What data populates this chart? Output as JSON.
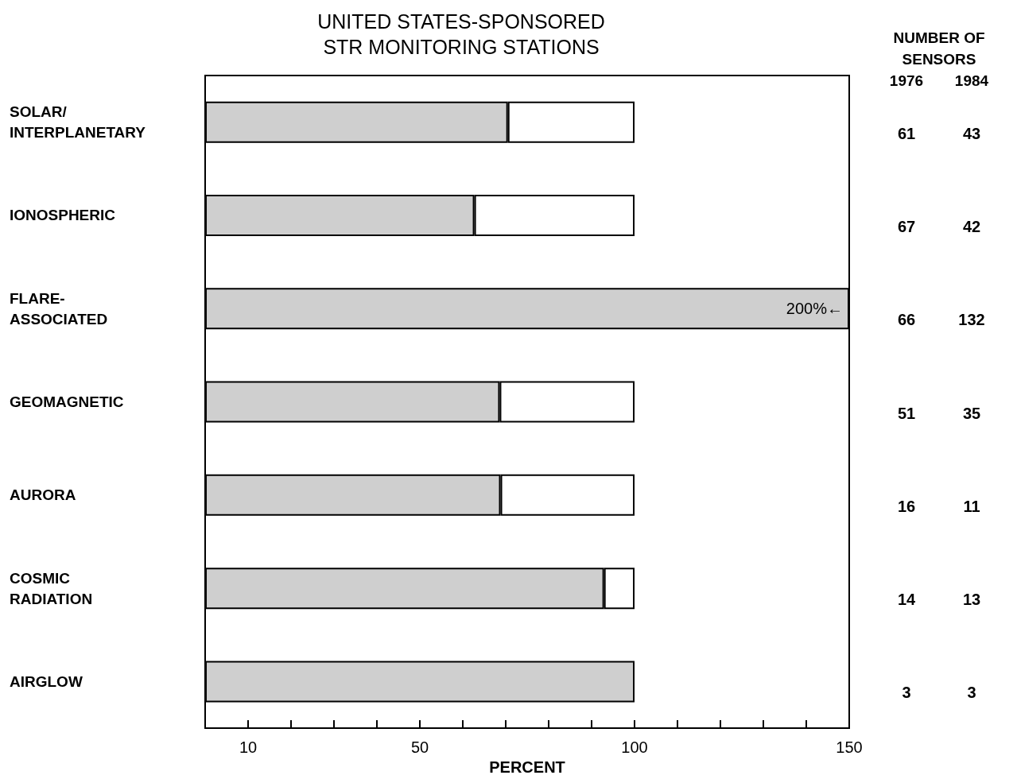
{
  "chart_data": {
    "type": "bar",
    "orientation": "horizontal",
    "stacked": true,
    "title": "UNITED STATES-SPONSORED\nSTR MONITORING STATIONS",
    "xlabel": "PERCENT",
    "categories": [
      "SOLAR/\nINTERPLANETARY",
      "IONOSPHERIC",
      "FLARE-\nASSOCIATED",
      "GEOMAGNETIC",
      "AURORA",
      "COSMIC\nRADIATION",
      "AIRGLOW"
    ],
    "series": [
      {
        "color": "#cfcfcf",
        "values": [
          70.5,
          62.7,
          150,
          68.6,
          68.8,
          92.9,
          100
        ]
      },
      {
        "color": "#ffffff",
        "values": [
          29.5,
          37.3,
          null,
          31.4,
          31.2,
          7.1,
          null
        ]
      }
    ],
    "xlim": [
      0,
      150
    ],
    "xticks": [
      10,
      {
        "value": 20,
        "label": null
      },
      {
        "value": 30,
        "label": null
      },
      {
        "value": 40,
        "label": null
      },
      50,
      {
        "value": 60,
        "label": null
      },
      {
        "value": 70,
        "label": null
      },
      {
        "value": 80,
        "label": null
      },
      {
        "value": 90,
        "label": null
      },
      100,
      {
        "value": 110,
        "label": null
      },
      {
        "value": 120,
        "label": null
      },
      {
        "value": 130,
        "label": null
      },
      {
        "value": 140,
        "label": null
      },
      150
    ],
    "grid": false,
    "annotations": [
      {
        "text": "200%←",
        "x": 150,
        "y": "FLARE-\nASSOCIATED"
      },
      "NUMBER OF\nSENSORS",
      "1976",
      "1984",
      "61",
      "43",
      "67",
      "42",
      "66",
      "132",
      "51",
      "35",
      "16",
      "11",
      "14",
      "13",
      "3",
      "3"
    ]
  }
}
